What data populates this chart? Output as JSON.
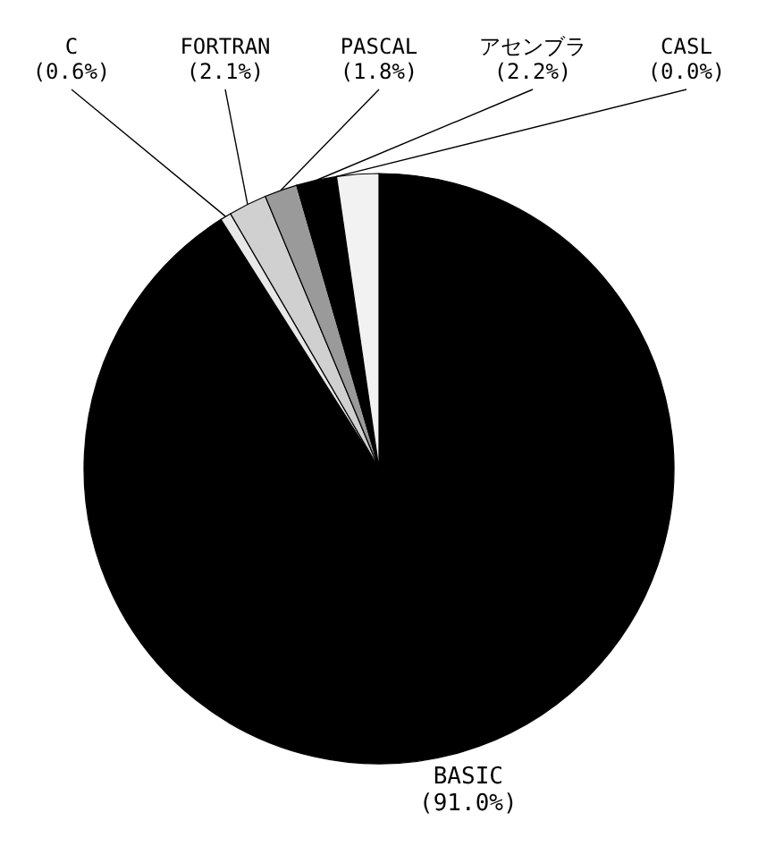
{
  "chart_data": {
    "type": "pie",
    "categories": [
      "BASIC",
      "C",
      "FORTRAN",
      "PASCAL",
      "アセンブラ",
      "CASL",
      null
    ],
    "values": [
      91.0,
      0.6,
      2.1,
      1.8,
      2.2,
      0.0,
      2.3
    ],
    "colors": [
      "#000000",
      "#e8e8e8",
      "#d0d0d0",
      "#9a9a9a",
      "#000000",
      "#ffffff",
      "#f2f2f2"
    ],
    "value_labels": [
      "(91.0%)",
      "(0.6%)",
      "(2.1%)",
      "(1.8%)",
      "(2.2%)",
      "(0.0%)",
      null
    ]
  }
}
